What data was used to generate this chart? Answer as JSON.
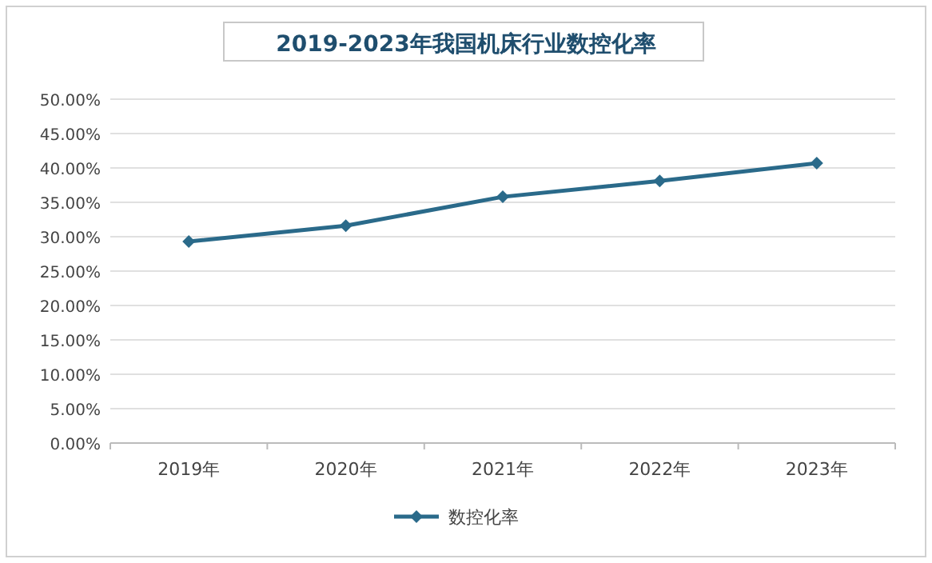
{
  "chart_data": {
    "type": "line",
    "title": "2019-2023年我国机床行业数控化率",
    "categories": [
      "2019年",
      "2020年",
      "2021年",
      "2022年",
      "2023年"
    ],
    "series": [
      {
        "name": "数控化率",
        "color": "#2a6a8a",
        "values": [
          29.3,
          31.6,
          35.8,
          38.1,
          40.7
        ]
      }
    ],
    "ylim": [
      0,
      50
    ],
    "yticks": [
      {
        "value": 0,
        "label": "0.00%"
      },
      {
        "value": 5,
        "label": "5.00%"
      },
      {
        "value": 10,
        "label": "10.00%"
      },
      {
        "value": 15,
        "label": "15.00%"
      },
      {
        "value": 20,
        "label": "20.00%"
      },
      {
        "value": 25,
        "label": "25.00%"
      },
      {
        "value": 30,
        "label": "30.00%"
      },
      {
        "value": 35,
        "label": "35.00%"
      },
      {
        "value": 40,
        "label": "40.00%"
      },
      {
        "value": 45,
        "label": "45.00%"
      },
      {
        "value": 50,
        "label": "50.00%"
      }
    ],
    "grid": "y",
    "legend": "bottom",
    "marker": "diamond",
    "line_style": "solid"
  }
}
